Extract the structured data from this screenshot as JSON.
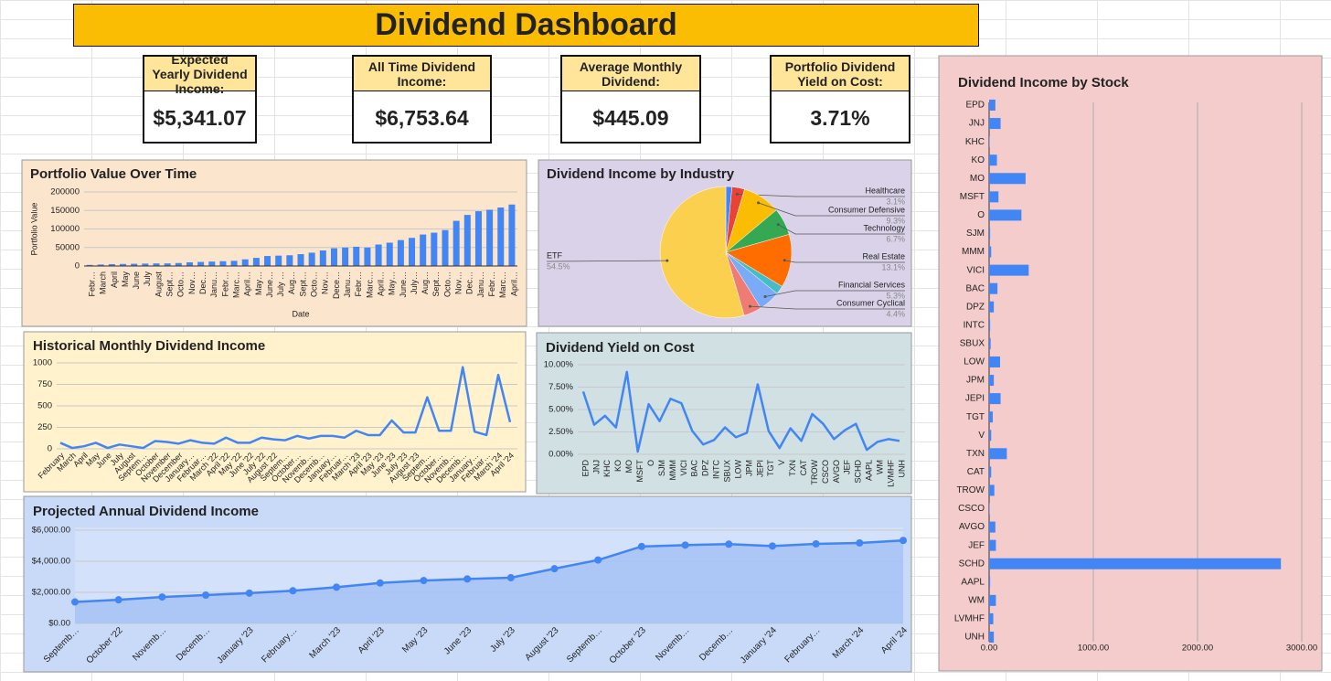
{
  "header": {
    "title": "Dividend Dashboard"
  },
  "kpis": [
    {
      "label": "Expected Yearly Dividend Income:",
      "value": "$5,341.07"
    },
    {
      "label": "All Time Dividend Income:",
      "value": "$6,753.64"
    },
    {
      "label": "Average Monthly Dividend:",
      "value": "$445.09"
    },
    {
      "label": "Portfolio Dividend Yield on Cost:",
      "value": "3.71%"
    }
  ],
  "chart_data": [
    {
      "type": "bar",
      "title": "Portfolio Value Over Time",
      "x_label": "Date",
      "y_label": "Portfolio Value",
      "color": "#4285f4",
      "grid": true,
      "categories": [
        "Febr…",
        "March",
        "April",
        "May",
        "June",
        "July",
        "August",
        "Sept…",
        "Octo…",
        "Nov…",
        "Dec…",
        "Janu…",
        "Febr…",
        "Marc…",
        "April…",
        "May…",
        "June…",
        "July …",
        "Aug…",
        "Sept…",
        "Octo…",
        "Nov…",
        "Dece…",
        "Janu…",
        "Febr…",
        "Marc…",
        "April…",
        "May…",
        "June…",
        "July…",
        "Aug…",
        "Sept…",
        "Octo…",
        "Nov…",
        "Dec…",
        "Janu…",
        "Febr…",
        "Marc…",
        "April…"
      ],
      "values": [
        3000,
        4000,
        5000,
        5500,
        6000,
        6500,
        7000,
        7000,
        8000,
        10000,
        11000,
        12000,
        13000,
        14000,
        18000,
        22000,
        27000,
        28000,
        29000,
        32000,
        36000,
        42000,
        48000,
        50000,
        52000,
        50000,
        58000,
        63000,
        70000,
        76000,
        85000,
        90000,
        97000,
        122000,
        138000,
        148000,
        152000,
        158000,
        166000
      ],
      "ylim": [
        0,
        200000
      ],
      "yticks": [
        0,
        50000,
        100000,
        150000,
        200000
      ]
    },
    {
      "type": "pie",
      "title": "Dividend Income by Industry",
      "categories": [
        null,
        "Healthcare",
        "Consumer Defensive",
        "Technology",
        "Real Estate",
        null,
        "Financial Services",
        "Consumer Cyclical",
        "ETF"
      ],
      "values": [
        1.5,
        3.1,
        9.3,
        6.7,
        13.1,
        2.1,
        5.3,
        4.4,
        54.5
      ],
      "value_labels": [
        null,
        "3.1%",
        "9.3%",
        "6.7%",
        "13.1%",
        null,
        "5.3%",
        "4.4%",
        "54.5%"
      ],
      "colors": [
        "#4285f4",
        "#ea4335",
        "#fbbc04",
        "#34a853",
        "#ff6d01",
        "#46bdc6",
        "#7baaf7",
        "#f07b72",
        "#fcd04f"
      ]
    },
    {
      "type": "line",
      "title": "Historical Monthly Dividend Income",
      "color": "#4285f4",
      "grid": true,
      "categories": [
        "February",
        "March",
        "April",
        "May",
        "June",
        "July",
        "August",
        "Septem…",
        "October",
        "November",
        "December",
        "January…",
        "Februar…",
        "March '22",
        "April '22",
        "May '22",
        "June '22",
        "July '22",
        "August '22",
        "Septem…",
        "October…",
        "Novemb…",
        "Decemb…",
        "January…",
        "Februar…",
        "March '23",
        "April '23",
        "May '23",
        "June '23",
        "July '23",
        "August '23",
        "Septem…",
        "October…",
        "Novemb…",
        "Decemb…",
        "January…",
        "Februar…",
        "March '24",
        "April '24"
      ],
      "values": [
        70,
        10,
        30,
        70,
        10,
        50,
        30,
        10,
        90,
        80,
        60,
        100,
        70,
        60,
        130,
        70,
        70,
        130,
        110,
        100,
        150,
        120,
        150,
        150,
        130,
        210,
        160,
        160,
        330,
        190,
        190,
        600,
        210,
        210,
        950,
        200,
        160,
        860,
        310
      ],
      "ylim": [
        0,
        1000
      ],
      "yticks": [
        0,
        250,
        500,
        750,
        1000
      ]
    },
    {
      "type": "line",
      "title": "Dividend Yield on Cost",
      "color": "#4285f4",
      "grid": true,
      "categories": [
        "EPD",
        "JNJ",
        "KHC",
        "KO",
        "MO",
        "MSFT",
        "O",
        "SJM",
        "MMM",
        "VICI",
        "BAC",
        "DPZ",
        "INTC",
        "SBUX",
        "LOW",
        "JPM",
        "JEPI",
        "TGT",
        "V",
        "TXN",
        "CAT",
        "TROW",
        "CSCO",
        "AVGO",
        "JEF",
        "SCHD",
        "AAPL",
        "WM",
        "LVMHF",
        "UNH"
      ],
      "values": [
        7.0,
        3.3,
        4.3,
        3.0,
        9.2,
        0.3,
        5.6,
        3.7,
        6.2,
        5.7,
        2.6,
        1.1,
        1.6,
        3.0,
        1.9,
        2.4,
        7.8,
        2.6,
        0.7,
        2.9,
        1.5,
        4.5,
        3.4,
        1.7,
        2.7,
        3.4,
        0.5,
        1.4,
        1.7,
        1.5
      ],
      "ylim": [
        0,
        10
      ],
      "yticks": [
        {
          "value": 0,
          "label": "0.00%"
        },
        {
          "value": 2.5,
          "label": "2.50%"
        },
        {
          "value": 5,
          "label": "5.00%"
        },
        {
          "value": 7.5,
          "label": "7.50%"
        },
        {
          "value": 10,
          "label": "10.00%"
        }
      ]
    },
    {
      "type": "area",
      "title": "Projected Annual Dividend Income",
      "color": "#4285f4",
      "grid": true,
      "categories": [
        "Septemb…",
        "October '22",
        "Novemb…",
        "Decemb…",
        "January '23",
        "February…",
        "March '23",
        "April '23",
        "May '23",
        "June '23",
        "July '23",
        "August '23",
        "Septemb…",
        "October '23",
        "Novemb…",
        "Decemb…",
        "January '24",
        "February…",
        "March '24",
        "April '24"
      ],
      "values": [
        1380,
        1520,
        1700,
        1820,
        1950,
        2100,
        2330,
        2600,
        2760,
        2860,
        2940,
        3520,
        4080,
        4950,
        5040,
        5100,
        4980,
        5120,
        5180,
        5340
      ],
      "ylim": [
        0,
        6000
      ],
      "yticks": [
        {
          "value": 0,
          "label": "$0.00"
        },
        {
          "value": 2000,
          "label": "$2,000.00"
        },
        {
          "value": 4000,
          "label": "$4,000.00"
        },
        {
          "value": 6000,
          "label": "$6,000.00"
        }
      ]
    },
    {
      "type": "bar",
      "orientation": "horizontal",
      "title": "Dividend Income by Stock",
      "color": "#4285f4",
      "grid": true,
      "categories": [
        "EPD",
        "JNJ",
        "KHC",
        "KO",
        "MO",
        "MSFT",
        "O",
        "SJM",
        "MMM",
        "VICI",
        "BAC",
        "DPZ",
        "INTC",
        "SBUX",
        "LOW",
        "JPM",
        "JEPI",
        "TGT",
        "V",
        "TXN",
        "CAT",
        "TROW",
        "CSCO",
        "AVGO",
        "JEF",
        "SCHD",
        "AAPL",
        "WM",
        "LVMHF",
        "UNH"
      ],
      "values": [
        60,
        110,
        5,
        75,
        350,
        90,
        310,
        10,
        20,
        380,
        80,
        45,
        10,
        15,
        105,
        45,
        110,
        35,
        20,
        170,
        20,
        50,
        5,
        60,
        65,
        2800,
        10,
        65,
        40,
        45
      ],
      "xlim": [
        0,
        3000
      ],
      "xticks": [
        {
          "value": 0,
          "label": "0.00"
        },
        {
          "value": 1000,
          "label": "1000.00"
        },
        {
          "value": 2000,
          "label": "2000.00"
        },
        {
          "value": 3000,
          "label": "3000.00"
        }
      ]
    }
  ]
}
